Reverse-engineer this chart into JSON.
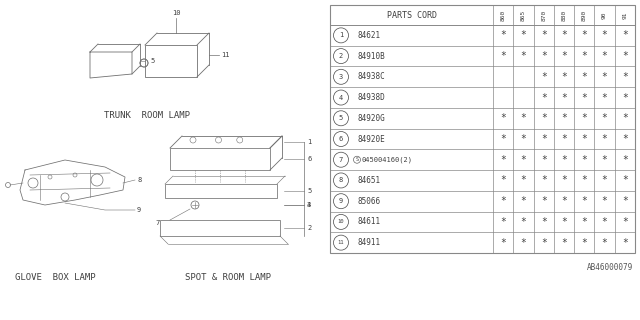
{
  "bg_color": "#ffffff",
  "parts_cord_label": "PARTS CORD",
  "col_headers": [
    "860",
    "865",
    "870",
    "880",
    "890",
    "90",
    "91"
  ],
  "rows": [
    {
      "num": "1",
      "part": "84621",
      "stars": [
        true,
        true,
        true,
        true,
        true,
        true,
        true
      ]
    },
    {
      "num": "2",
      "part": "84910B",
      "stars": [
        true,
        true,
        true,
        true,
        true,
        true,
        true
      ]
    },
    {
      "num": "3",
      "part": "84938C",
      "stars": [
        false,
        false,
        true,
        true,
        true,
        true,
        true
      ]
    },
    {
      "num": "4",
      "part": "84938D",
      "stars": [
        false,
        false,
        true,
        true,
        true,
        true,
        true
      ]
    },
    {
      "num": "5",
      "part": "84920G",
      "stars": [
        true,
        true,
        true,
        true,
        true,
        true,
        true
      ]
    },
    {
      "num": "6",
      "part": "84920E",
      "stars": [
        true,
        true,
        true,
        true,
        true,
        true,
        true
      ]
    },
    {
      "num": "7",
      "part": "S045004160(2)",
      "stars": [
        true,
        true,
        true,
        true,
        true,
        true,
        true
      ]
    },
    {
      "num": "8",
      "part": "84651",
      "stars": [
        true,
        true,
        true,
        true,
        true,
        true,
        true
      ]
    },
    {
      "num": "9",
      "part": "85066",
      "stars": [
        true,
        true,
        true,
        true,
        true,
        true,
        true
      ]
    },
    {
      "num": "10",
      "part": "84611",
      "stars": [
        true,
        true,
        true,
        true,
        true,
        true,
        true
      ]
    },
    {
      "num": "11",
      "part": "84911",
      "stars": [
        true,
        true,
        true,
        true,
        true,
        true,
        true
      ]
    }
  ],
  "label_trunk": "TRUNK  ROOM LAMP",
  "label_glove": "GLOVE  BOX LAMP",
  "label_spot": "SPOT & ROOM LAMP",
  "footer_code": "AB46000079",
  "line_color": "#888888",
  "text_color": "#404040",
  "draw_color": "#707070"
}
